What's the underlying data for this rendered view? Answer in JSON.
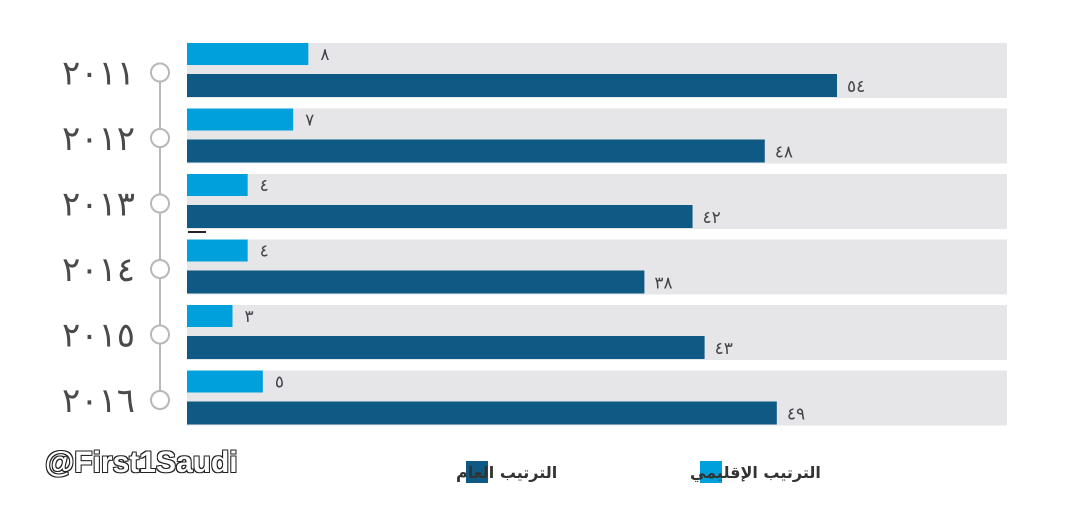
{
  "chart_data": {
    "type": "bar",
    "orientation": "horizontal",
    "categories": [
      "٢٠١١",
      "٢٠١٢",
      "٢٠١٣",
      "٢٠١٤",
      "٢٠١٥",
      "٢٠١٦"
    ],
    "series": [
      {
        "name": "الترتيب الإقليمي",
        "color": "#00a0dc",
        "values": [
          8,
          7,
          4,
          4,
          3,
          5
        ],
        "labels": [
          "٨",
          "٧",
          "٤",
          "٤",
          "٣",
          "٥"
        ]
      },
      {
        "name": "الترتيب العام",
        "color": "#0e5a85",
        "values": [
          54,
          48,
          42,
          38,
          43,
          49
        ],
        "labels": [
          "٥٤",
          "٤٨",
          "٤٢",
          "٣٨",
          "٤٣",
          "٤٩"
        ]
      }
    ],
    "xlim": [
      0,
      60
    ],
    "legend_position": "bottom",
    "grid": false
  },
  "watermark": "@First1Saudi",
  "colors": {
    "band": "#e6e6e8",
    "timeline": "#b8b8b8"
  }
}
